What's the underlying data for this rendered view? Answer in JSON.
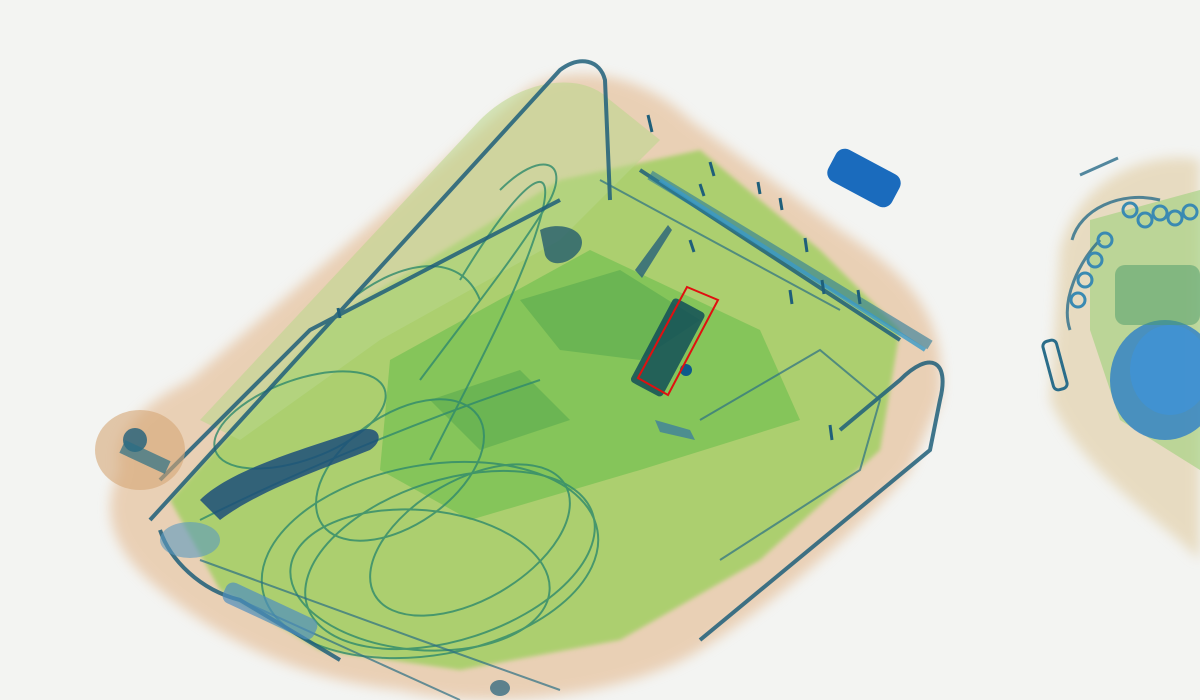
{
  "scan": {
    "kind": "x-ray baggage scan",
    "colors": {
      "background": "#f3f4f2",
      "organic": "#d9a878",
      "mixed": "#8ccc4a",
      "inorganic": "#1e6fb8",
      "outline": "#1f5f7a",
      "detection_box": "#e01010"
    }
  }
}
